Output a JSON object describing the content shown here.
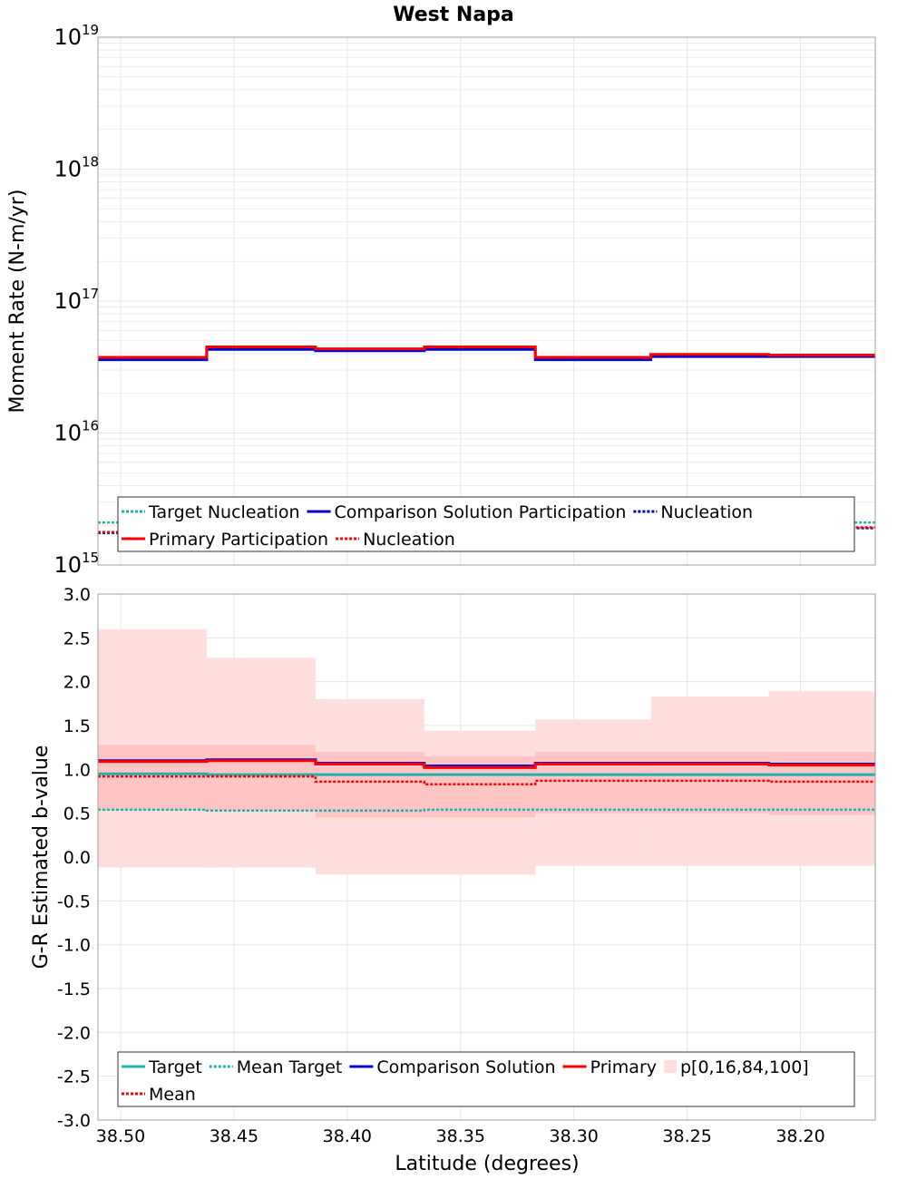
{
  "title": "West Napa",
  "xlabel": "Latitude (degrees)",
  "x_ticks": [
    "38.50",
    "38.45",
    "38.40",
    "38.35",
    "38.30",
    "38.25",
    "38.20"
  ],
  "x_tick_values": [
    38.5,
    38.45,
    38.4,
    38.35,
    38.3,
    38.25,
    38.2
  ],
  "xlim": [
    38.51,
    38.167
  ],
  "bin_edges": [
    38.51,
    38.462,
    38.414,
    38.366,
    38.317,
    38.266,
    38.214,
    38.167
  ],
  "colors": {
    "target": "#20b2aa",
    "comparison": "#0000cd",
    "primary": "#ff0000",
    "band_outer": "#ffdede",
    "band_inner": "#ffc4c4",
    "grid": "#e6e6e6"
  },
  "chart_data": [
    {
      "type": "line",
      "subtype": "step",
      "ylabel": "Moment Rate (N-m/yr)",
      "yscale": "log",
      "ylim": [
        1000000000000000.0,
        1e+19
      ],
      "y_ticks": [
        {
          "base": "10",
          "exp": "15"
        },
        {
          "base": "10",
          "exp": "16"
        },
        {
          "base": "10",
          "exp": "17"
        },
        {
          "base": "10",
          "exp": "18"
        },
        {
          "base": "10",
          "exp": "19"
        }
      ],
      "series": [
        {
          "name": "Target Nucleation",
          "style": "dotted",
          "color": "#20b2aa",
          "values": [
            2100000000000000.0,
            2200000000000000.0,
            2200000000000000.0,
            2200000000000000.0,
            2150000000000000.0,
            2150000000000000.0,
            2100000000000000.0
          ]
        },
        {
          "name": "Comparison Solution Participation",
          "style": "solid",
          "color": "#0000cd",
          "values": [
            3.6e+16,
            4.3e+16,
            4.2e+16,
            4.3e+16,
            3.6e+16,
            3.8e+16,
            3.8e+16
          ]
        },
        {
          "name": "Nucleation",
          "style": "dotted",
          "color": "#0000cd",
          "values": [
            1750000000000000.0,
            2200000000000000.0,
            2200000000000000.0,
            2200000000000000.0,
            1850000000000000.0,
            2000000000000000.0,
            1900000000000000.0
          ]
        },
        {
          "name": "Primary Participation",
          "style": "solid",
          "color": "#ff0000",
          "values": [
            3.75e+16,
            4.5e+16,
            4.35e+16,
            4.5e+16,
            3.75e+16,
            3.95e+16,
            3.9e+16
          ]
        },
        {
          "name": "Nucleation",
          "style": "dotted",
          "color": "#ff0000",
          "values": [
            1780000000000000.0,
            2200000000000000.0,
            2200000000000000.0,
            2200000000000000.0,
            1880000000000000.0,
            2000000000000000.0,
            1930000000000000.0
          ]
        }
      ],
      "legend": {
        "placement": "bottom",
        "rows": [
          [
            {
              "label": "Target Nucleation",
              "color": "#20b2aa",
              "style": "dotted"
            },
            {
              "label": "Comparison Solution Participation",
              "color": "#0000cd",
              "style": "solid"
            },
            {
              "label": "Nucleation",
              "color": "#0000cd",
              "style": "dotted"
            }
          ],
          [
            {
              "label": "Primary Participation",
              "color": "#ff0000",
              "style": "solid"
            },
            {
              "label": "Nucleation",
              "color": "#ff0000",
              "style": "dotted"
            }
          ]
        ]
      }
    },
    {
      "type": "line",
      "subtype": "step",
      "ylabel": "G-R Estimated b-value",
      "ylim": [
        -3.0,
        3.0
      ],
      "y_ticks": [
        "3.0",
        "2.5",
        "2.0",
        "1.5",
        "1.0",
        "0.5",
        "0.0",
        "-0.5",
        "-1.0",
        "-1.5",
        "-2.0",
        "-2.5",
        "-3.0"
      ],
      "y_tick_values": [
        3.0,
        2.5,
        2.0,
        1.5,
        1.0,
        0.5,
        0.0,
        -0.5,
        -1.0,
        -1.5,
        -2.0,
        -2.5,
        -3.0
      ],
      "band_outer": {
        "name": "p[0,16,84,100]",
        "low": [
          -0.12,
          -0.12,
          -0.2,
          -0.2,
          -0.1,
          -0.1,
          -0.1
        ],
        "high": [
          2.6,
          2.27,
          1.8,
          1.44,
          1.57,
          1.83,
          1.89
        ]
      },
      "band_inner": {
        "low": [
          0.53,
          0.53,
          0.45,
          0.45,
          0.5,
          0.5,
          0.48
        ],
        "high": [
          1.28,
          1.28,
          1.2,
          1.15,
          1.2,
          1.2,
          1.2
        ]
      },
      "series": [
        {
          "name": "Target",
          "style": "solid",
          "color": "#20b2aa",
          "values": [
            0.95,
            0.94,
            0.94,
            0.94,
            0.94,
            0.94,
            0.94
          ]
        },
        {
          "name": "Mean Target",
          "style": "dotted",
          "color": "#20b2aa",
          "values": [
            0.54,
            0.53,
            0.53,
            0.54,
            0.54,
            0.54,
            0.54
          ]
        },
        {
          "name": "Comparison Solution",
          "style": "solid",
          "color": "#0000cd",
          "values": [
            1.1,
            1.11,
            1.07,
            1.04,
            1.07,
            1.07,
            1.06
          ]
        },
        {
          "name": "Primary",
          "style": "solid",
          "color": "#ff0000",
          "values": [
            1.09,
            1.1,
            1.06,
            1.02,
            1.06,
            1.06,
            1.05
          ]
        },
        {
          "name": "Mean",
          "style": "dotted",
          "color": "#ff0000",
          "values": [
            0.92,
            0.92,
            0.86,
            0.83,
            0.87,
            0.87,
            0.86
          ]
        }
      ],
      "legend": {
        "placement": "bottom",
        "rows": [
          [
            {
              "label": "Target",
              "color": "#20b2aa",
              "style": "solid"
            },
            {
              "label": "Mean Target",
              "color": "#20b2aa",
              "style": "dotted"
            },
            {
              "label": "Comparison Solution",
              "color": "#0000cd",
              "style": "solid"
            },
            {
              "label": "Primary",
              "color": "#ff0000",
              "style": "solid"
            },
            {
              "label": "p[0,16,84,100]",
              "color": "#ffdede",
              "style": "patch"
            }
          ],
          [
            {
              "label": "Mean",
              "color": "#ff0000",
              "style": "dotted"
            }
          ]
        ]
      }
    }
  ]
}
